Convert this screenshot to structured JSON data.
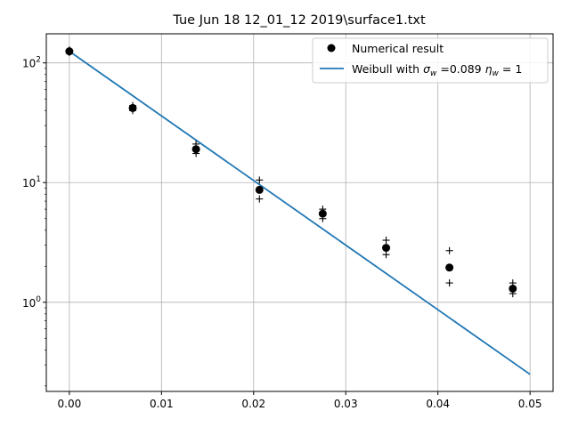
{
  "chart_data": {
    "type": "scatter",
    "title": "Tue Jun 18 12_01_12 2019\\surface1.txt",
    "xlabel": "",
    "ylabel": "",
    "yscale": "log",
    "xlim": [
      -0.0025,
      0.0525
    ],
    "ylim": [
      0.18,
      175
    ],
    "grid": true,
    "legend_position": "top-right",
    "x_ticks": [
      {
        "value": 0.0,
        "label": "0.00"
      },
      {
        "value": 0.01,
        "label": "0.01"
      },
      {
        "value": 0.02,
        "label": "0.02"
      },
      {
        "value": 0.03,
        "label": "0.03"
      },
      {
        "value": 0.04,
        "label": "0.04"
      },
      {
        "value": 0.05,
        "label": "0.05"
      }
    ],
    "y_ticks": [
      {
        "value": 1,
        "base": "10",
        "exp": "0"
      },
      {
        "value": 10,
        "base": "10",
        "exp": "1"
      },
      {
        "value": 100,
        "base": "10",
        "exp": "2"
      }
    ],
    "series": [
      {
        "name": "Numerical result",
        "kind": "markers",
        "marker": "circle",
        "color": "#000000",
        "x": [
          0.0,
          0.00688,
          0.01375,
          0.02063,
          0.0275,
          0.03438,
          0.04125,
          0.04813
        ],
        "y": [
          125,
          42,
          19,
          8.7,
          5.5,
          2.85,
          1.95,
          1.3
        ]
      },
      {
        "name": "Weibull with σw =0.089 ηw = 1",
        "legend_parts": {
          "pre": "Weibull with ",
          "sym1": "σ",
          "sub1": "w",
          "mid": " =0.089 ",
          "sym2": "η",
          "sub2": "w",
          "post": " = 1"
        },
        "kind": "line",
        "color": "#1f77b4",
        "x": [
          0.0,
          0.05
        ],
        "y": [
          125,
          0.25
        ]
      },
      {
        "kind": "markers",
        "marker": "plus",
        "color": "#000000",
        "x": [
          0.0,
          0.0,
          0.00688,
          0.00688,
          0.01375,
          0.01375,
          0.02063,
          0.02063,
          0.0275,
          0.0275,
          0.03438,
          0.03438,
          0.04125,
          0.04125,
          0.04813,
          0.04813
        ],
        "y": [
          128,
          122,
          44,
          40,
          21,
          17.5,
          10.5,
          7.3,
          6.0,
          5.0,
          3.3,
          2.5,
          2.7,
          1.45,
          1.45,
          1.18
        ]
      }
    ]
  }
}
